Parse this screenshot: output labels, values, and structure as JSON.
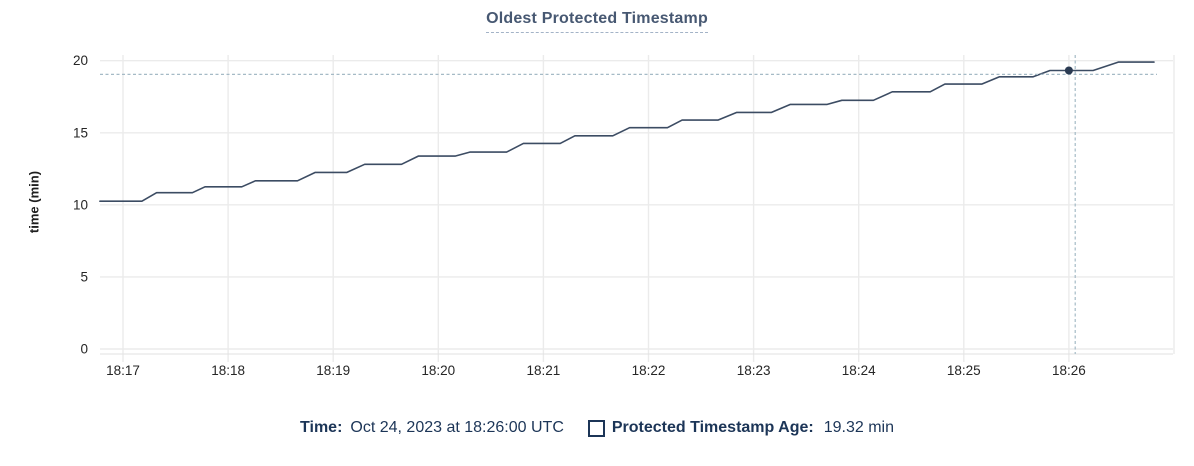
{
  "page": {
    "background": "#ffffff"
  },
  "chart_data": {
    "type": "line",
    "title": "Oldest Protected Timestamp",
    "xlabel": "",
    "ylabel": "time (min)",
    "x_tick_labels": [
      "18:17",
      "18:18",
      "18:19",
      "18:20",
      "18:21",
      "18:22",
      "18:23",
      "18:24",
      "18:25",
      "18:26"
    ],
    "y_tick_labels": [
      0,
      5,
      10,
      15,
      20
    ],
    "ylim": [
      0,
      20
    ],
    "x_unit": "clock time (HH:MM UTC), Oct 24, 2023",
    "grid": true,
    "legend_position": "bottom",
    "series": [
      {
        "name": "Protected Timestamp Age",
        "unit": "min",
        "t_unit": "minutes after 18:17",
        "points": [
          [
            -0.22,
            10.25
          ],
          [
            0.18,
            10.25
          ],
          [
            0.32,
            10.84
          ],
          [
            0.66,
            10.84
          ],
          [
            0.78,
            11.25
          ],
          [
            1.13,
            11.25
          ],
          [
            1.26,
            11.67
          ],
          [
            1.66,
            11.67
          ],
          [
            1.83,
            12.25
          ],
          [
            2.13,
            12.25
          ],
          [
            2.3,
            12.81
          ],
          [
            2.65,
            12.81
          ],
          [
            2.81,
            13.38
          ],
          [
            3.16,
            13.38
          ],
          [
            3.3,
            13.66
          ],
          [
            3.65,
            13.66
          ],
          [
            3.81,
            14.26
          ],
          [
            4.16,
            14.26
          ],
          [
            4.3,
            14.79
          ],
          [
            4.66,
            14.79
          ],
          [
            4.82,
            15.35
          ],
          [
            5.18,
            15.35
          ],
          [
            5.32,
            15.88
          ],
          [
            5.66,
            15.88
          ],
          [
            5.84,
            16.41
          ],
          [
            6.17,
            16.41
          ],
          [
            6.35,
            16.97
          ],
          [
            6.7,
            16.97
          ],
          [
            6.84,
            17.25
          ],
          [
            7.14,
            17.25
          ],
          [
            7.32,
            17.84
          ],
          [
            7.68,
            17.84
          ],
          [
            7.82,
            18.38
          ],
          [
            8.17,
            18.38
          ],
          [
            8.34,
            18.88
          ],
          [
            8.66,
            18.88
          ],
          [
            8.82,
            19.32
          ],
          [
            9.23,
            19.32
          ],
          [
            9.47,
            19.9
          ],
          [
            9.81,
            19.9
          ]
        ]
      }
    ],
    "hover": {
      "time": "18:26:00",
      "point_t": 9.0,
      "point_value": 19.32,
      "cursor_t": 9.06,
      "cursor_value": 19.05
    }
  },
  "legend": {
    "time_label": "Time:",
    "time_value": "Oct 24, 2023 at 18:26:00 UTC",
    "series_label": "Protected Timestamp Age:",
    "series_value": "19.32 min"
  },
  "colors": {
    "line": "#3c4c63",
    "dot": "#2a3a52",
    "crosshair": "#a5bac6",
    "grid": "#ebebeb",
    "axis_domain": "#e2e2e2",
    "axis_text": "#262626",
    "title": "#475872",
    "title_underline": "#a3b3c7",
    "legend_text": "#1c3557"
  }
}
